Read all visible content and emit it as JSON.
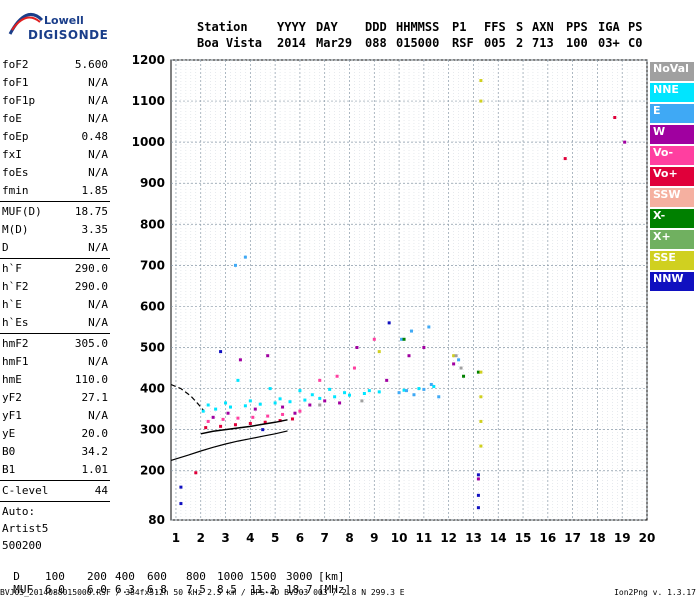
{
  "logo": {
    "line1": "Lowell",
    "line2": "DIGISONDE"
  },
  "header": {
    "labels": [
      "Station",
      "YYYY",
      "DAY",
      "DDD",
      "HHMMSS",
      "P1",
      "FFS",
      "S",
      "AXN",
      "PPS",
      "IGA",
      "PS"
    ],
    "values": [
      "Boa Vista",
      "2014",
      "Mar29",
      "088",
      "015000",
      "RSF",
      "005",
      "2",
      "713",
      "100",
      "03+",
      "C0"
    ]
  },
  "params": [
    {
      "name": "foF2",
      "value": "5.600"
    },
    {
      "name": "foF1",
      "value": "N/A"
    },
    {
      "name": "foF1p",
      "value": "N/A"
    },
    {
      "name": "foE",
      "value": "N/A"
    },
    {
      "name": "foEp",
      "value": "0.48"
    },
    {
      "name": "fxI",
      "value": "N/A"
    },
    {
      "name": "foEs",
      "value": "N/A"
    },
    {
      "name": "fmin",
      "value": "1.85",
      "sep": true
    },
    {
      "name": "MUF(D)",
      "value": "18.75"
    },
    {
      "name": "M(D)",
      "value": "3.35"
    },
    {
      "name": "D",
      "value": "N/A",
      "sep": true
    },
    {
      "name": "h`F",
      "value": "290.0"
    },
    {
      "name": "h`F2",
      "value": "290.0"
    },
    {
      "name": "h`E",
      "value": "N/A"
    },
    {
      "name": "h`Es",
      "value": "N/A",
      "sep": true
    },
    {
      "name": "hmF2",
      "value": "305.0"
    },
    {
      "name": "hmF1",
      "value": "N/A"
    },
    {
      "name": "hmE",
      "value": "110.0"
    },
    {
      "name": "yF2",
      "value": "27.1"
    },
    {
      "name": "yF1",
      "value": "N/A"
    },
    {
      "name": "yE",
      "value": "20.0"
    },
    {
      "name": "B0",
      "value": "34.2"
    },
    {
      "name": "B1",
      "value": "1.01",
      "sep": true
    },
    {
      "name": "C-level",
      "value": "44",
      "sep": true
    }
  ],
  "auto": [
    "Auto:",
    "Artist5",
    "500200"
  ],
  "legend": [
    {
      "label": "NoVal",
      "color": "#a0a0a0"
    },
    {
      "label": "NNE",
      "color": "#00e5ff"
    },
    {
      "label": "E",
      "color": "#3fa9f5"
    },
    {
      "label": "W",
      "color": "#a000a0"
    },
    {
      "label": "Vo-",
      "color": "#ff3fa0"
    },
    {
      "label": "Vo+",
      "color": "#e0003a"
    },
    {
      "label": "SSW",
      "color": "#f5b0a0"
    },
    {
      "label": "X-",
      "color": "#008000"
    },
    {
      "label": "X+",
      "color": "#70b060"
    },
    {
      "label": "SSE",
      "color": "#d0d020"
    },
    {
      "label": "NNW",
      "color": "#1010c0"
    }
  ],
  "muf_table": {
    "d_label": "D",
    "d_values": [
      "100",
      "200",
      "400",
      "600",
      "800",
      "1000",
      "1500",
      "3000",
      "[km]"
    ],
    "muf_label": "MUF",
    "muf_values": [
      "6.0",
      "6.0",
      "6.3",
      "6.8",
      "7.5",
      "8.5",
      "11.3",
      "18.7",
      "[MHz]"
    ]
  },
  "footer": "BVJ03_2014088015000.RSF / 384fx512h 50 kHz 2.5 km / DPS-4D BVJ03 003 / 2.8 N 299.3 E",
  "version": "Ion2Png v. 1.3.17",
  "chart_data": {
    "type": "scatter",
    "xlabel": "",
    "ylabel": "",
    "xlim": [
      0.8,
      20
    ],
    "ylim": [
      80,
      1200
    ],
    "xticks": [
      1,
      2,
      3,
      4,
      5,
      6,
      7,
      8,
      9,
      10,
      11,
      12,
      13,
      14,
      15,
      16,
      17,
      18,
      19,
      20
    ],
    "yticks": [
      80,
      200,
      300,
      400,
      500,
      600,
      700,
      800,
      900,
      1000,
      1100,
      1200
    ],
    "grid": true,
    "series": [
      {
        "name": "NNE",
        "color": "#00e5ff",
        "points": [
          [
            2.1,
            345
          ],
          [
            2.6,
            350
          ],
          [
            3.2,
            355
          ],
          [
            3.8,
            358
          ],
          [
            4.4,
            362
          ],
          [
            5.0,
            365
          ],
          [
            5.6,
            368
          ],
          [
            6.2,
            372
          ],
          [
            6.8,
            376
          ],
          [
            7.4,
            380
          ],
          [
            8.0,
            384
          ],
          [
            8.6,
            388
          ],
          [
            9.2,
            392
          ],
          [
            2.3,
            360
          ],
          [
            3.0,
            365
          ],
          [
            4.0,
            370
          ],
          [
            5.2,
            375
          ],
          [
            6.5,
            385
          ],
          [
            7.8,
            390
          ],
          [
            8.8,
            395
          ],
          [
            10.2,
            396
          ],
          [
            10.8,
            400
          ],
          [
            11.4,
            405
          ],
          [
            3.5,
            420
          ],
          [
            4.8,
            400
          ],
          [
            6.0,
            395
          ],
          [
            7.2,
            398
          ]
        ]
      },
      {
        "name": "E",
        "color": "#3fa9f5",
        "points": [
          [
            10.0,
            390
          ],
          [
            10.3,
            395
          ],
          [
            10.6,
            385
          ],
          [
            11.0,
            398
          ],
          [
            11.3,
            410
          ],
          [
            11.6,
            380
          ],
          [
            10.1,
            520
          ],
          [
            10.5,
            540
          ],
          [
            11.2,
            550
          ],
          [
            3.4,
            700
          ],
          [
            3.8,
            720
          ],
          [
            12.4,
            470
          ]
        ]
      },
      {
        "name": "W",
        "color": "#a000a0",
        "points": [
          [
            2.5,
            330
          ],
          [
            3.1,
            340
          ],
          [
            3.6,
            470
          ],
          [
            4.2,
            350
          ],
          [
            4.7,
            480
          ],
          [
            5.3,
            355
          ],
          [
            5.8,
            340
          ],
          [
            6.4,
            360
          ],
          [
            7.0,
            370
          ],
          [
            7.6,
            365
          ],
          [
            8.3,
            500
          ],
          [
            9.5,
            420
          ],
          [
            10.4,
            480
          ],
          [
            11.0,
            500
          ],
          [
            12.2,
            460
          ],
          [
            13.2,
            180
          ],
          [
            19.1,
            1000
          ]
        ]
      },
      {
        "name": "Vo-",
        "color": "#ff3fa0",
        "points": [
          [
            2.3,
            320
          ],
          [
            2.9,
            325
          ],
          [
            3.5,
            328
          ],
          [
            4.1,
            330
          ],
          [
            4.7,
            333
          ],
          [
            5.3,
            337
          ],
          [
            6.0,
            345
          ],
          [
            6.8,
            420
          ],
          [
            7.5,
            430
          ],
          [
            8.2,
            450
          ],
          [
            9.0,
            520
          ]
        ]
      },
      {
        "name": "Vo+",
        "color": "#e0003a",
        "points": [
          [
            2.2,
            305
          ],
          [
            2.8,
            308
          ],
          [
            3.4,
            312
          ],
          [
            4.0,
            315
          ],
          [
            4.6,
            318
          ],
          [
            5.2,
            322
          ],
          [
            5.7,
            326
          ],
          [
            1.8,
            195
          ],
          [
            18.7,
            1060
          ],
          [
            16.7,
            960
          ]
        ]
      },
      {
        "name": "X-",
        "color": "#008000",
        "points": [
          [
            13.2,
            440
          ],
          [
            12.6,
            430
          ],
          [
            10.2,
            520
          ]
        ]
      },
      {
        "name": "SSE",
        "color": "#d0d020",
        "points": [
          [
            13.3,
            1150
          ],
          [
            13.3,
            1100
          ],
          [
            13.3,
            440
          ],
          [
            13.3,
            380
          ],
          [
            13.3,
            320
          ],
          [
            13.3,
            260
          ],
          [
            9.2,
            490
          ],
          [
            12.2,
            480
          ]
        ]
      },
      {
        "name": "NNW",
        "color": "#1010c0",
        "points": [
          [
            13.2,
            140
          ],
          [
            13.2,
            110
          ],
          [
            13.2,
            190
          ],
          [
            1.2,
            160
          ],
          [
            1.2,
            120
          ],
          [
            2.8,
            490
          ],
          [
            4.5,
            300
          ],
          [
            9.6,
            560
          ]
        ]
      },
      {
        "name": "NoVal",
        "color": "#a0a0a0",
        "points": [
          [
            12.3,
            480
          ],
          [
            12.5,
            450
          ],
          [
            6.8,
            360
          ],
          [
            8.5,
            370
          ]
        ]
      }
    ],
    "curves": [
      {
        "style": "solid",
        "points": [
          [
            0.8,
            225
          ],
          [
            1.5,
            238
          ],
          [
            2.0,
            248
          ],
          [
            2.5,
            257
          ],
          [
            3.0,
            265
          ],
          [
            3.5,
            272
          ],
          [
            4.0,
            278
          ],
          [
            4.5,
            284
          ],
          [
            5.0,
            290
          ],
          [
            5.5,
            297
          ]
        ]
      },
      {
        "style": "dashed",
        "points": [
          [
            0.8,
            410
          ],
          [
            1.2,
            400
          ],
          [
            1.6,
            382
          ],
          [
            1.9,
            362
          ],
          [
            2.1,
            348
          ]
        ]
      },
      {
        "style": "solid-dark",
        "points": [
          [
            2.0,
            290
          ],
          [
            2.5,
            296
          ],
          [
            3.0,
            300
          ],
          [
            3.5,
            304
          ],
          [
            4.0,
            308
          ],
          [
            4.5,
            313
          ],
          [
            5.0,
            318
          ],
          [
            5.5,
            324
          ]
        ]
      }
    ]
  }
}
